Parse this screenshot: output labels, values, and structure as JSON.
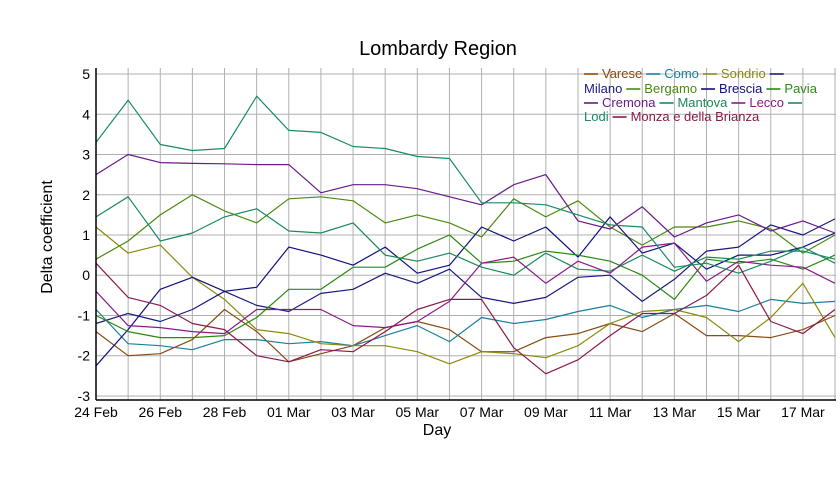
{
  "chart_data": {
    "type": "line",
    "title": "Lombardy Region",
    "xlabel": "Day",
    "ylabel": "Delta coefficient",
    "ylim": [
      -3,
      5
    ],
    "yticks": [
      "-3",
      "-2",
      "-1",
      "0",
      "1",
      "2",
      "3",
      "4",
      "5"
    ],
    "xticks": [
      "24 Feb",
      "26 Feb",
      "28 Feb",
      "01 Mar",
      "03 Mar",
      "05 Mar",
      "07 Mar",
      "09 Mar",
      "11 Mar",
      "13 Mar",
      "15 Mar",
      "17 Mar"
    ],
    "grid": true,
    "legend_position": "top-right",
    "x": [
      "24 Feb",
      "25 Feb",
      "26 Feb",
      "27 Feb",
      "28 Feb",
      "29 Feb",
      "01 Mar",
      "02 Mar",
      "03 Mar",
      "04 Mar",
      "05 Mar",
      "06 Mar",
      "07 Mar",
      "08 Mar",
      "09 Mar",
      "10 Mar",
      "11 Mar",
      "12 Mar",
      "13 Mar",
      "14 Mar",
      "15 Mar",
      "16 Mar",
      "17 Mar",
      "18 Mar"
    ],
    "series": [
      {
        "name": "Varese",
        "color": "#8a4b12",
        "values": [
          -1.4,
          -2.0,
          -1.95,
          -1.6,
          -0.85,
          -1.4,
          -2.15,
          -1.95,
          -1.75,
          -1.3,
          -1.15,
          -1.35,
          -1.9,
          -1.9,
          -1.55,
          -1.45,
          -1.2,
          -1.4,
          -0.95,
          -1.5,
          -1.5,
          -1.55,
          -1.35,
          -1.0
        ]
      },
      {
        "name": "Como",
        "color": "#1a7fa0",
        "values": [
          -0.85,
          -1.7,
          -1.75,
          -1.85,
          -1.6,
          -1.6,
          -1.7,
          -1.65,
          -1.75,
          -1.5,
          -1.25,
          -1.65,
          -1.05,
          -1.2,
          -1.1,
          -0.9,
          -0.75,
          -1.05,
          -0.85,
          -0.75,
          -0.9,
          -0.6,
          -0.7,
          -0.65
        ]
      },
      {
        "name": "Sondrio",
        "color": "#8a8a10",
        "values": [
          1.2,
          0.55,
          0.75,
          -0.05,
          -0.6,
          -1.35,
          -1.45,
          -1.7,
          -1.75,
          -1.75,
          -1.9,
          -2.2,
          -1.9,
          -1.95,
          -2.05,
          -1.75,
          -1.2,
          -0.9,
          -0.85,
          -1.05,
          -1.65,
          -1.05,
          -0.2,
          -1.55
        ]
      },
      {
        "name": "Milano",
        "color": "#1a1a80",
        "values": [
          -1.2,
          -0.95,
          -1.15,
          -0.85,
          -0.4,
          -0.75,
          -0.9,
          -0.45,
          -0.35,
          0.05,
          -0.2,
          0.15,
          -0.55,
          -0.7,
          -0.55,
          -0.05,
          0.0,
          -0.65,
          -0.1,
          0.6,
          0.7,
          1.25,
          1.0,
          1.4
        ]
      },
      {
        "name": "Bergamo",
        "color": "#4a8a10",
        "values": [
          0.4,
          0.85,
          1.5,
          2.0,
          1.6,
          1.3,
          1.9,
          1.95,
          1.85,
          1.3,
          1.5,
          1.3,
          0.95,
          1.9,
          1.45,
          1.85,
          1.2,
          0.75,
          1.2,
          1.2,
          1.35,
          1.15,
          0.55,
          1.0
        ]
      },
      {
        "name": "Brescia",
        "color": "#101080",
        "values": [
          -2.25,
          -1.35,
          -0.35,
          -0.05,
          -0.4,
          -0.3,
          0.7,
          0.5,
          0.25,
          0.7,
          0.05,
          0.25,
          1.2,
          0.85,
          1.2,
          0.45,
          1.45,
          0.55,
          0.8,
          0.15,
          0.5,
          0.5,
          0.7,
          1.05
        ]
      },
      {
        "name": "Pavia",
        "color": "#2a8a10",
        "values": [
          -1.0,
          -1.4,
          -1.55,
          -1.55,
          -1.5,
          -1.05,
          -0.35,
          -0.35,
          0.2,
          0.2,
          0.65,
          1.0,
          0.3,
          0.35,
          0.6,
          0.5,
          0.35,
          0.0,
          -0.6,
          0.4,
          0.3,
          0.4,
          0.15,
          0.5
        ]
      },
      {
        "name": "Cremona",
        "color": "#6a1a8a",
        "values": [
          2.5,
          3.0,
          2.8,
          2.78,
          2.77,
          2.75,
          2.75,
          2.05,
          2.25,
          2.25,
          2.15,
          1.95,
          1.75,
          2.25,
          2.5,
          1.35,
          1.15,
          1.7,
          0.95,
          1.3,
          1.5,
          1.1,
          1.35,
          1.05
        ]
      },
      {
        "name": "Mantova",
        "color": "#1a8a5a",
        "values": [
          1.45,
          1.95,
          0.85,
          1.05,
          1.45,
          1.65,
          1.1,
          1.05,
          1.3,
          0.5,
          0.35,
          0.55,
          0.2,
          0.0,
          0.55,
          0.15,
          0.1,
          0.5,
          0.1,
          0.45,
          0.4,
          0.6,
          0.6,
          0.4
        ]
      },
      {
        "name": "Lecco",
        "color": "#8a1a8a",
        "values": [
          -0.4,
          -1.25,
          -1.3,
          -1.4,
          -1.45,
          -0.85,
          -0.85,
          -0.85,
          -1.25,
          -1.3,
          -1.15,
          -0.65,
          0.3,
          0.45,
          -0.2,
          0.35,
          0.05,
          0.7,
          0.8,
          -0.15,
          0.35,
          0.25,
          0.2,
          -0.2
        ]
      },
      {
        "name": "Lodi",
        "color": "#1a8a6a",
        "values": [
          3.3,
          4.35,
          3.25,
          3.1,
          3.15,
          4.45,
          3.6,
          3.55,
          3.2,
          3.15,
          2.95,
          2.9,
          1.8,
          1.8,
          1.75,
          1.5,
          1.25,
          1.2,
          0.2,
          0.3,
          0.05,
          0.35,
          0.7,
          0.3
        ]
      },
      {
        "name": "Monza e della Brianza",
        "color": "#8a1a4a",
        "values": [
          0.3,
          -0.55,
          -0.75,
          -1.2,
          -1.35,
          -2.0,
          -2.15,
          -1.85,
          -1.9,
          -1.4,
          -0.85,
          -0.6,
          -0.6,
          -1.8,
          -2.45,
          -2.1,
          -1.5,
          -0.95,
          -0.95,
          -0.5,
          0.25,
          -1.15,
          -1.45,
          -0.85
        ]
      }
    ]
  }
}
